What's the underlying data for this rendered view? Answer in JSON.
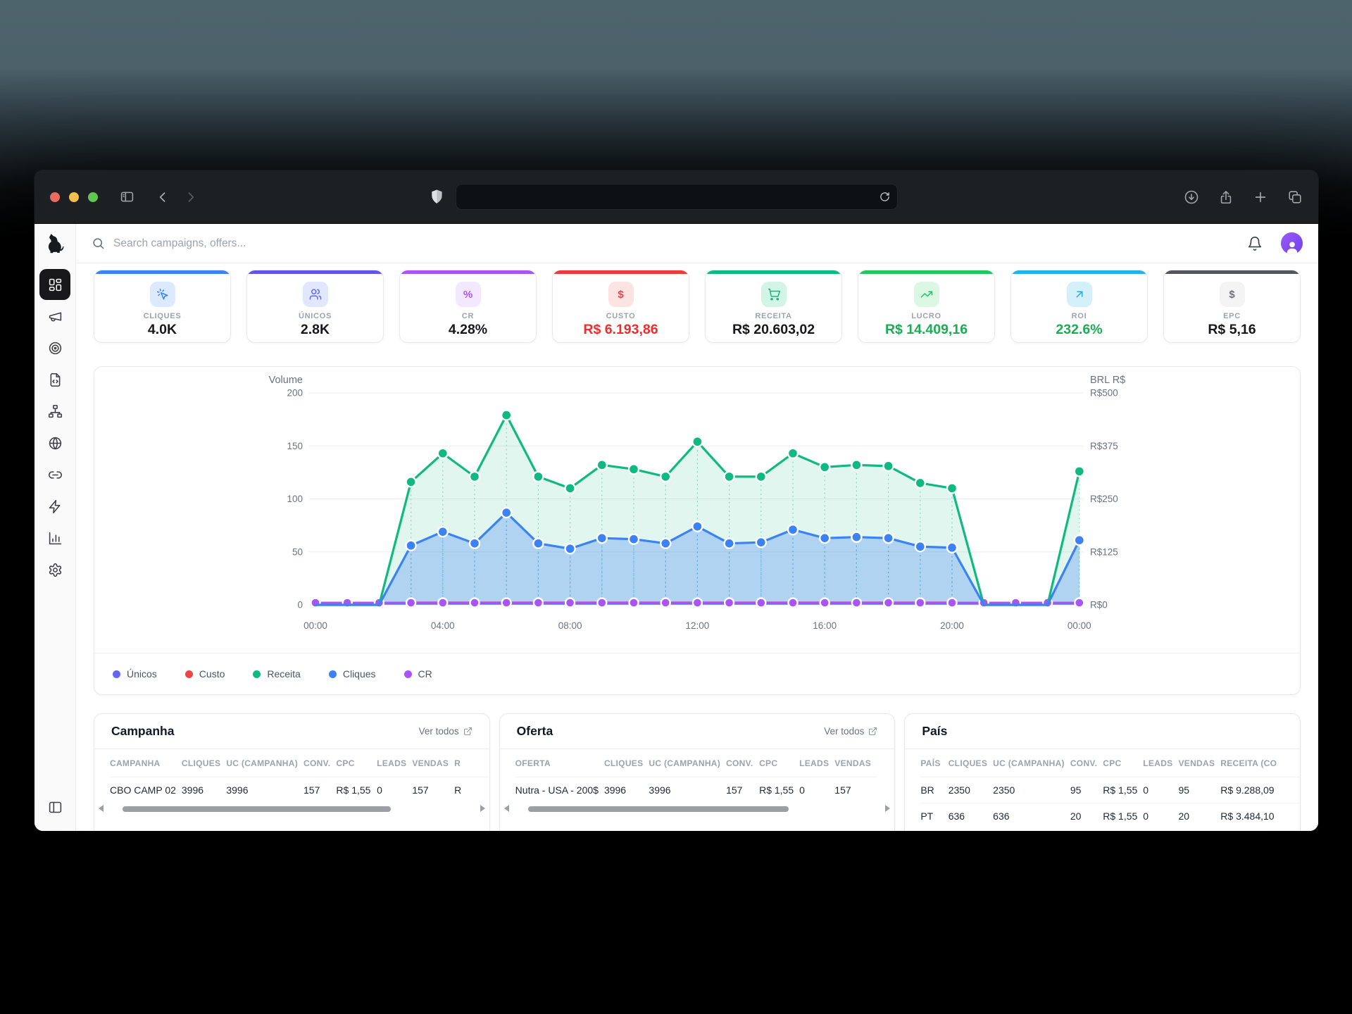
{
  "browser": {
    "traffic_lights": {
      "close": "#ec6a5e",
      "minimize": "#f5bf4f",
      "zoom": "#61c554"
    },
    "url_value": ""
  },
  "header": {
    "search_placeholder": "Search campaigns, offers..."
  },
  "sidebar": {
    "items": [
      {
        "icon": "dashboard-grid-icon",
        "active": true
      },
      {
        "icon": "megaphone-icon",
        "active": false
      },
      {
        "icon": "target-icon",
        "active": false
      },
      {
        "icon": "file-code-icon",
        "active": false
      },
      {
        "icon": "sitemap-icon",
        "active": false
      },
      {
        "icon": "globe-icon",
        "active": false
      },
      {
        "icon": "link-icon",
        "active": false
      },
      {
        "icon": "zap-icon",
        "active": false
      },
      {
        "icon": "bar-chart-icon",
        "active": false
      },
      {
        "icon": "settings-icon",
        "active": false
      }
    ],
    "bottom_icon": "panel-toggle-icon"
  },
  "metrics": [
    {
      "label": "CLIQUES",
      "value": "4.0K",
      "accent": "#3b82f6",
      "icon": "cursor-click-icon",
      "icon_bg": "#dbeafe",
      "icon_color": "#3b82f6",
      "value_color": "#18181b"
    },
    {
      "label": "ÚNICOS",
      "value": "2.8K",
      "accent": "#6254e8",
      "icon": "users-icon",
      "icon_bg": "#e0e7ff",
      "icon_color": "#6366f1",
      "value_color": "#18181b"
    },
    {
      "label": "CR",
      "value": "4.28%",
      "accent": "#a855f7",
      "icon": "percent-icon",
      "icon_bg": "#f3e8ff",
      "icon_color": "#a855f7",
      "value_color": "#18181b"
    },
    {
      "label": "CUSTO",
      "value": "R$ 6.193,86",
      "accent": "#ee3a3a",
      "icon": "dollar-icon",
      "icon_bg": "#fde3e1",
      "icon_color": "#ef4444",
      "value_color": "#ef2d2d"
    },
    {
      "label": "RECEITA",
      "value": "R$ 20.603,02",
      "accent": "#10b981",
      "icon": "cart-icon",
      "icon_bg": "#d3f5e7",
      "icon_color": "#10b981",
      "value_color": "#18181b"
    },
    {
      "label": "LUCRO",
      "value": "R$ 14.409,16",
      "accent": "#22c55e",
      "icon": "trending-up-icon",
      "icon_bg": "#dcf7e3",
      "icon_color": "#22c55e",
      "value_color": "#1cac54"
    },
    {
      "label": "ROI",
      "value": "232.6%",
      "accent": "#22b1e8",
      "icon": "arrow-up-right-icon",
      "icon_bg": "#d3f0fb",
      "icon_color": "#2aa8e0",
      "value_color": "#1cac54"
    },
    {
      "label": "EPC",
      "value": "R$ 5,16",
      "accent": "#55555e",
      "icon": "dollar-icon",
      "icon_bg": "#f4f4f5",
      "icon_color": "#71717a",
      "value_color": "#18181b"
    }
  ],
  "chart_data": {
    "type": "area",
    "x": [
      "00:00",
      "01:00",
      "02:00",
      "03:00",
      "04:00",
      "05:00",
      "06:00",
      "07:00",
      "08:00",
      "09:00",
      "10:00",
      "11:00",
      "12:00",
      "13:00",
      "14:00",
      "15:00",
      "16:00",
      "17:00",
      "18:00",
      "19:00",
      "20:00",
      "21:00",
      "22:00",
      "23:00",
      "00:00"
    ],
    "x_tick_indices": [
      0,
      4,
      8,
      12,
      16,
      20,
      24
    ],
    "left_axis": {
      "title": "Volume",
      "ticks": [
        0,
        50,
        100,
        150,
        200
      ],
      "max": 200
    },
    "right_axis": {
      "title": "BRL R$",
      "ticks": [
        "R$0",
        "R$125",
        "R$250",
        "R$375",
        "R$500"
      ]
    },
    "grid": true,
    "legend_position": "bottom",
    "series": [
      {
        "name": "Receita",
        "color": "#10b981",
        "area": true,
        "dots": true,
        "values": [
          0,
          0,
          0,
          116,
          143,
          121,
          179,
          121,
          110,
          132,
          128,
          121,
          154,
          121,
          121,
          143,
          130,
          132,
          131,
          115,
          110,
          0,
          0,
          0,
          126
        ]
      },
      {
        "name": "Cliques",
        "color": "#3b82f6",
        "area": true,
        "dots": true,
        "values": [
          0,
          0,
          0,
          56,
          69,
          58,
          87,
          58,
          53,
          63,
          62,
          58,
          74,
          58,
          59,
          71,
          63,
          64,
          63,
          55,
          54,
          0,
          0,
          0,
          61
        ]
      },
      {
        "name": "CR",
        "color": "#a855f7",
        "area": false,
        "dots": true,
        "values": [
          2,
          2,
          2,
          2,
          2,
          2,
          2,
          2,
          2,
          2,
          2,
          2,
          2,
          2,
          2,
          2,
          2,
          2,
          2,
          2,
          2,
          2,
          2,
          2,
          2
        ]
      },
      {
        "name": "Custo",
        "color": "#ef4444",
        "area": false,
        "dots": false,
        "values": [
          1.5,
          1.5,
          1.5,
          2.5,
          2.5,
          2.5,
          2.5,
          2.5,
          2.5,
          2.5,
          2.5,
          2.5,
          2.5,
          2.5,
          2.5,
          2.5,
          2.5,
          2.5,
          2.5,
          2.5,
          2.5,
          1.5,
          1.5,
          1.5,
          1.5
        ]
      },
      {
        "name": "Únicos",
        "color": "#6366f1",
        "area": false,
        "dots": false,
        "values": [
          1,
          1,
          1,
          1,
          1,
          1,
          1,
          1,
          1,
          1,
          1,
          1,
          1,
          1,
          1,
          1,
          1,
          1,
          1,
          1,
          1,
          1,
          1,
          1,
          1
        ]
      }
    ],
    "legend": [
      {
        "label": "Únicos",
        "color": "#6366f1"
      },
      {
        "label": "Custo",
        "color": "#ef4444"
      },
      {
        "label": "Receita",
        "color": "#10b981"
      },
      {
        "label": "Cliques",
        "color": "#3b82f6"
      },
      {
        "label": "CR",
        "color": "#a855f7"
      }
    ]
  },
  "tables": [
    {
      "title": "Campanha",
      "link": "Ver todos",
      "scrollbar": true,
      "thumb": [
        24,
        72
      ],
      "headers": [
        "CAMPANHA",
        "CLIQUES",
        "UC (CAMPANHA)",
        "CONV.",
        "CPC",
        "LEADS",
        "VENDAS",
        "R"
      ],
      "rows": [
        [
          "CBO CAMP 02",
          "3996",
          "3996",
          "157",
          "R$ 1,55",
          "0",
          "157",
          "R"
        ]
      ]
    },
    {
      "title": "Oferta",
      "link": "Ver todos",
      "scrollbar": true,
      "thumb": [
        24,
        70
      ],
      "headers": [
        "OFERTA",
        "CLIQUES",
        "UC (CAMPANHA)",
        "CONV.",
        "CPC",
        "LEADS",
        "VENDAS"
      ],
      "rows": [
        [
          "Nutra - USA - 200$",
          "3996",
          "3996",
          "157",
          "R$ 1,55",
          "0",
          "157"
        ]
      ]
    },
    {
      "title": "País",
      "link": null,
      "scrollbar": false,
      "thumb": null,
      "headers": [
        "PAÍS",
        "CLIQUES",
        "UC (CAMPANHA)",
        "CONV.",
        "CPC",
        "LEADS",
        "VENDAS",
        "RECEITA (CO"
      ],
      "rows": [
        [
          "BR",
          "2350",
          "2350",
          "95",
          "R$ 1,55",
          "0",
          "95",
          "R$ 9.288,09"
        ],
        [
          "PT",
          "636",
          "636",
          "20",
          "R$ 1,55",
          "0",
          "20",
          "R$ 3.484,10"
        ]
      ]
    }
  ]
}
